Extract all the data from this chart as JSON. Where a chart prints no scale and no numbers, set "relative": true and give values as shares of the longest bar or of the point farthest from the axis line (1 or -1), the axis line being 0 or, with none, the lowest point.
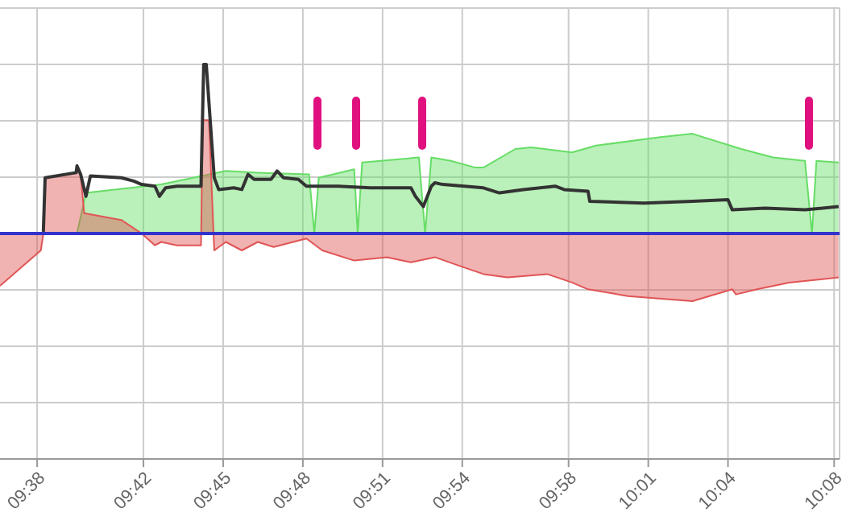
{
  "chart_data": {
    "type": "area",
    "relative": true,
    "grid": true,
    "xlim": [
      9.61,
      10.1367
    ],
    "xticks": [
      {
        "value": 9.6333,
        "label": "09:38"
      },
      {
        "value": 9.7,
        "label": "09:42"
      },
      {
        "value": 9.75,
        "label": "09:45"
      },
      {
        "value": 9.8,
        "label": "09:48"
      },
      {
        "value": 9.85,
        "label": "09:51"
      },
      {
        "value": 9.9,
        "label": "09:54"
      },
      {
        "value": 9.9667,
        "label": "09:58"
      },
      {
        "value": 10.0167,
        "label": "10:01"
      },
      {
        "value": 10.0667,
        "label": "10:04"
      },
      {
        "value": 10.1333,
        "label": "10:08"
      }
    ],
    "ref_lines": [
      {
        "axis": "y",
        "value": 0,
        "color": "#3333cc"
      }
    ],
    "series": [
      {
        "color": "#66dd66",
        "x": [
          9.6583,
          9.6639,
          9.7111,
          9.7311,
          9.7517,
          9.7717,
          9.8039,
          9.8072,
          9.81,
          9.8322,
          9.8344,
          9.8372,
          9.8728,
          9.8767,
          9.8806,
          9.8928,
          9.9083,
          9.9133,
          9.9333,
          9.9433,
          9.9689,
          9.9839,
          10.0244,
          10.0444,
          10.075,
          10.095,
          10.115,
          10.1194,
          10.1222,
          10.1361
        ],
        "values": [
          0,
          0.24,
          0.29,
          0.33,
          0.37,
          0.36,
          0.35,
          0,
          0.33,
          0.38,
          0,
          0.42,
          0.45,
          0,
          0.45,
          0.43,
          0.39,
          0.39,
          0.5,
          0.51,
          0.48,
          0.52,
          0.57,
          0.59,
          0.5,
          0.45,
          0.43,
          0,
          0.43,
          0.42
        ]
      },
      {
        "color": "#e05555",
        "x": [
          9.61,
          9.6356,
          9.6372,
          9.6383,
          9.6578,
          9.6583,
          9.6606,
          9.6628,
          9.6861,
          9.6989,
          9.7072,
          9.7111,
          9.7211,
          9.7361,
          9.7372,
          9.7411,
          9.7444,
          9.7517,
          9.7617,
          9.7717,
          9.7817,
          9.8022,
          9.8122,
          9.8322,
          9.8528,
          9.8678,
          9.8828,
          9.8978,
          9.9133,
          9.9283,
          9.9533,
          9.9689,
          9.9789,
          10.0039,
          10.0444,
          10.0694,
          10.0717,
          10.085,
          10.105,
          10.1361
        ],
        "values": [
          -0.31,
          -0.1,
          0,
          0.33,
          0.36,
          0.4,
          0.35,
          0.12,
          0.08,
          0,
          -0.07,
          -0.05,
          -0.07,
          -0.07,
          0.67,
          0.67,
          -0.1,
          -0.05,
          -0.1,
          -0.05,
          -0.08,
          -0.03,
          -0.1,
          -0.16,
          -0.14,
          -0.17,
          -0.14,
          -0.19,
          -0.24,
          -0.26,
          -0.24,
          -0.29,
          -0.33,
          -0.37,
          -0.4,
          -0.33,
          -0.36,
          -0.33,
          -0.29,
          -0.26
        ]
      },
      {
        "type": "line",
        "color": "#333333",
        "x": [
          9.6372,
          9.6383,
          9.6578,
          9.6583,
          9.6606,
          9.6639,
          9.6667,
          9.6861,
          9.6939,
          9.6989,
          9.7072,
          9.71,
          9.7139,
          9.7211,
          9.7361,
          9.7378,
          9.7394,
          9.7444,
          9.7472,
          9.7567,
          9.7617,
          9.7656,
          9.7694,
          9.78,
          9.7839,
          9.7878,
          9.7972,
          9.8022,
          9.8222,
          9.8422,
          9.8678,
          9.8706,
          9.8756,
          9.8806,
          9.8828,
          9.8878,
          9.9133,
          9.9233,
          9.9383,
          9.9583,
          9.9639,
          9.9789,
          9.98,
          10.0139,
          10.0444,
          10.0667,
          10.0694,
          10.09,
          10.115,
          10.1361
        ],
        "values": [
          0.01,
          0.33,
          0.36,
          0.4,
          0.35,
          0.22,
          0.34,
          0.33,
          0.31,
          0.29,
          0.28,
          0.22,
          0.27,
          0.28,
          0.28,
          1,
          1,
          0.33,
          0.26,
          0.27,
          0.26,
          0.35,
          0.32,
          0.32,
          0.37,
          0.33,
          0.32,
          0.28,
          0.28,
          0.27,
          0.27,
          0.22,
          0.16,
          0.28,
          0.3,
          0.29,
          0.27,
          0.24,
          0.26,
          0.28,
          0.26,
          0.25,
          0.19,
          0.18,
          0.19,
          0.2,
          0.14,
          0.15,
          0.14,
          0.16
        ]
      }
    ]
  }
}
